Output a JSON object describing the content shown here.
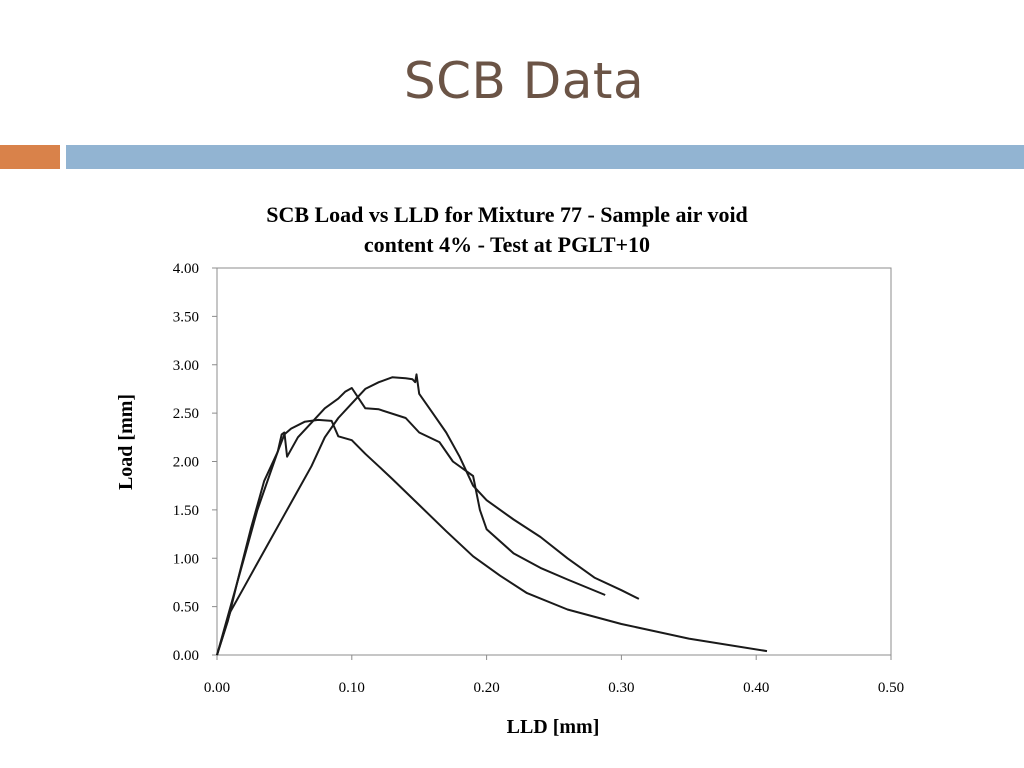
{
  "slide": {
    "title": "SCB Data",
    "accent_orange": "#d9824a",
    "accent_blue": "#92b4d2"
  },
  "chart_data": {
    "type": "line",
    "title_line1": "SCB Load vs LLD for Mixture 77 - Sample air void",
    "title_line2": "content 4% - Test at PGLT+10",
    "xlabel": "LLD [mm]",
    "ylabel": "Load [mm]",
    "xlim": [
      0,
      0.5
    ],
    "ylim": [
      0,
      4
    ],
    "xticks": [
      "0.00",
      "0.10",
      "0.20",
      "0.30",
      "0.40",
      "0.50"
    ],
    "yticks": [
      "0.00",
      "0.50",
      "1.00",
      "1.50",
      "2.00",
      "2.50",
      "3.00",
      "3.50",
      "4.00"
    ],
    "grid": false,
    "line_color": "#1a1a1a",
    "series": [
      {
        "x": [
          0.0,
          0.008,
          0.015,
          0.025,
          0.035,
          0.045,
          0.05,
          0.055,
          0.065,
          0.075,
          0.085,
          0.09,
          0.1,
          0.11,
          0.12,
          0.13,
          0.15,
          0.17,
          0.19,
          0.21,
          0.23,
          0.26,
          0.3,
          0.35,
          0.408
        ],
        "y": [
          0.0,
          0.35,
          0.75,
          1.3,
          1.8,
          2.1,
          2.28,
          2.34,
          2.41,
          2.43,
          2.42,
          2.26,
          2.22,
          2.08,
          1.95,
          1.82,
          1.55,
          1.28,
          1.02,
          0.82,
          0.64,
          0.47,
          0.32,
          0.17,
          0.04
        ]
      },
      {
        "x": [
          0.0,
          0.01,
          0.02,
          0.03,
          0.04,
          0.045,
          0.048,
          0.05,
          0.052,
          0.06,
          0.07,
          0.08,
          0.09,
          0.095,
          0.1,
          0.11,
          0.12,
          0.14,
          0.15,
          0.165,
          0.175,
          0.185,
          0.19,
          0.195,
          0.2,
          0.22,
          0.24,
          0.26,
          0.288
        ],
        "y": [
          0.0,
          0.5,
          1.0,
          1.5,
          1.9,
          2.1,
          2.28,
          2.3,
          2.05,
          2.25,
          2.4,
          2.55,
          2.65,
          2.72,
          2.76,
          2.55,
          2.54,
          2.45,
          2.3,
          2.2,
          2.0,
          1.9,
          1.85,
          1.5,
          1.3,
          1.05,
          0.9,
          0.78,
          0.62
        ]
      },
      {
        "x": [
          0.0,
          0.01,
          0.02,
          0.03,
          0.04,
          0.05,
          0.06,
          0.07,
          0.08,
          0.09,
          0.1,
          0.11,
          0.12,
          0.13,
          0.14,
          0.145,
          0.147,
          0.148,
          0.15,
          0.16,
          0.17,
          0.18,
          0.19,
          0.2,
          0.22,
          0.24,
          0.26,
          0.28,
          0.3,
          0.313
        ],
        "y": [
          0.0,
          0.45,
          0.7,
          0.95,
          1.2,
          1.45,
          1.7,
          1.95,
          2.25,
          2.45,
          2.6,
          2.75,
          2.82,
          2.87,
          2.86,
          2.85,
          2.82,
          2.9,
          2.7,
          2.5,
          2.3,
          2.05,
          1.75,
          1.6,
          1.4,
          1.22,
          1.0,
          0.8,
          0.67,
          0.58
        ]
      }
    ]
  }
}
